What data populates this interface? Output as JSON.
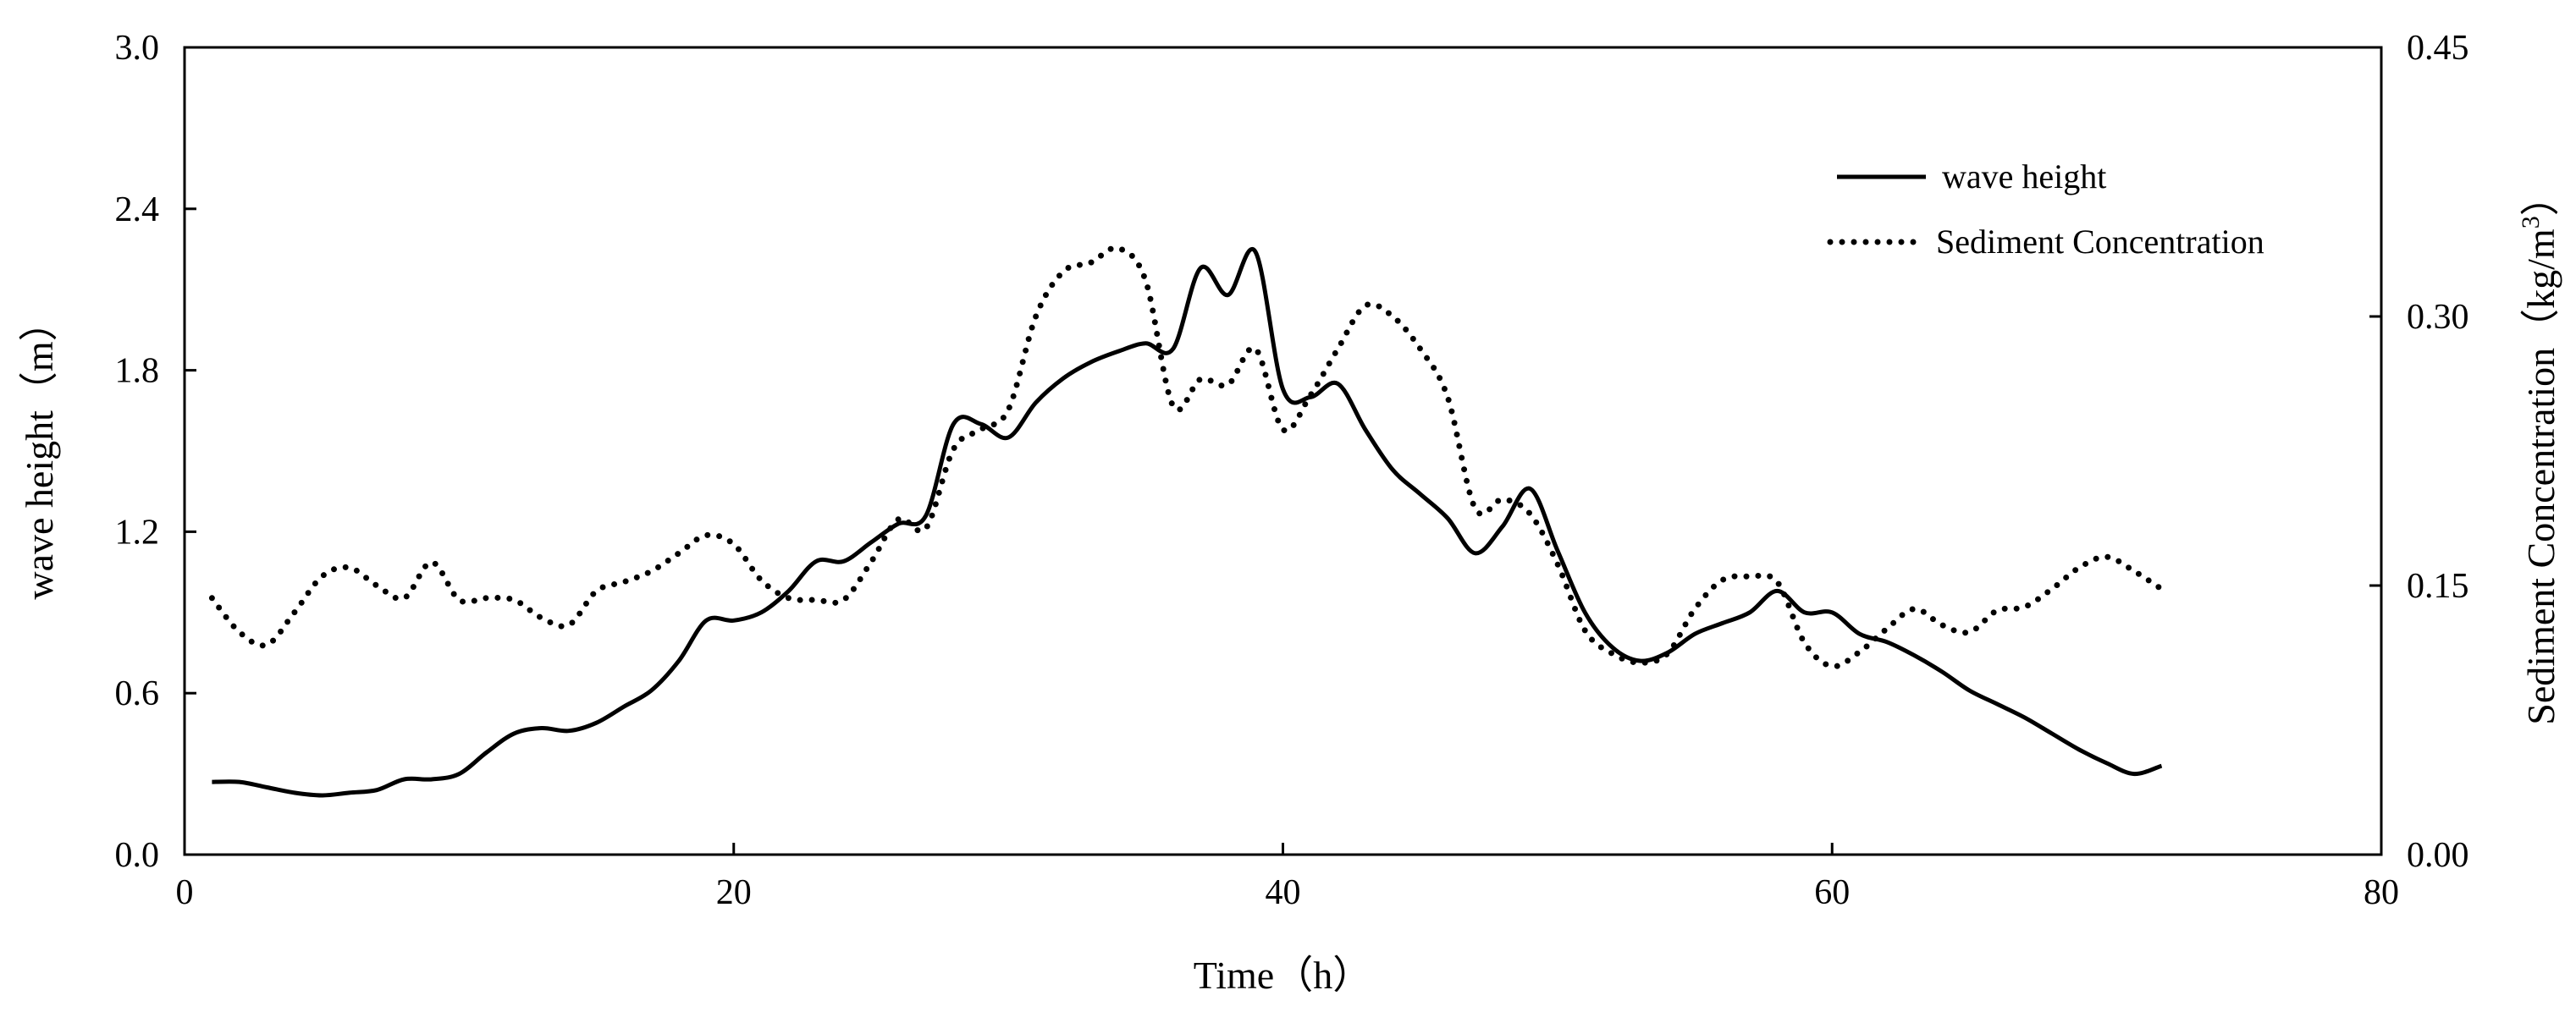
{
  "chart_data": {
    "type": "line",
    "xlabel": "Time（h）",
    "ylabel_left": "wave height（m）",
    "ylabel_right_main": "Sediment Concentration（kg/m",
    "ylabel_right_sup": "3",
    "ylabel_right_end": "）",
    "xlim": [
      0,
      80
    ],
    "ylim_left": [
      0,
      3.0
    ],
    "ylim_right": [
      0,
      0.45
    ],
    "x_ticks": [
      0,
      20,
      40,
      60,
      80
    ],
    "x_tick_labels": [
      "0",
      "20",
      "40",
      "60",
      "80"
    ],
    "y_left_ticks": [
      0,
      0.6,
      1.2,
      1.8,
      2.4,
      3.0
    ],
    "y_left_tick_labels": [
      "0.0",
      "0.6",
      "1.2",
      "1.8",
      "2.4",
      "3.0"
    ],
    "y_right_ticks": [
      0,
      0.15,
      0.3,
      0.45
    ],
    "y_right_tick_labels": [
      "0.00",
      "0.15",
      "0.30",
      "0.45"
    ],
    "grid": false,
    "legend_position": "top-right",
    "series": [
      {
        "name": "wave height",
        "axis": "left",
        "style": "solid",
        "color": "#000000",
        "x": [
          1,
          2,
          3,
          4,
          5,
          6,
          7,
          8,
          9,
          10,
          11,
          12,
          13,
          14,
          15,
          16,
          17,
          18,
          19,
          20,
          21,
          22,
          23,
          24,
          25,
          26,
          27,
          28,
          29,
          30,
          31,
          32,
          33,
          34,
          35,
          36,
          37,
          38,
          39,
          40,
          41,
          42,
          43,
          44,
          45,
          46,
          47,
          48,
          49,
          50,
          51,
          52,
          53,
          54,
          55,
          56,
          57,
          58,
          59,
          60,
          61,
          62,
          63,
          64,
          65,
          66,
          67,
          68,
          69,
          70,
          71,
          72
        ],
        "y": [
          0.27,
          0.27,
          0.25,
          0.23,
          0.22,
          0.23,
          0.24,
          0.28,
          0.28,
          0.3,
          0.38,
          0.45,
          0.47,
          0.46,
          0.49,
          0.55,
          0.61,
          0.72,
          0.87,
          0.87,
          0.9,
          0.98,
          1.09,
          1.09,
          1.16,
          1.23,
          1.26,
          1.6,
          1.6,
          1.55,
          1.68,
          1.77,
          1.83,
          1.87,
          1.9,
          1.88,
          2.18,
          2.08,
          2.24,
          1.73,
          1.7,
          1.75,
          1.58,
          1.43,
          1.34,
          1.25,
          1.12,
          1.22,
          1.36,
          1.13,
          0.9,
          0.77,
          0.72,
          0.75,
          0.82,
          0.86,
          0.9,
          0.98,
          0.9,
          0.9,
          0.82,
          0.79,
          0.74,
          0.68,
          0.61,
          0.56,
          0.51,
          0.45,
          0.39,
          0.34,
          0.3,
          0.33
        ]
      },
      {
        "name": "Sediment Concentration",
        "axis": "right",
        "style": "dotted",
        "color": "#000000",
        "x": [
          1,
          2,
          3,
          4,
          5,
          6,
          7,
          8,
          9,
          10,
          11,
          12,
          13,
          14,
          15,
          16,
          17,
          18,
          19,
          20,
          21,
          22,
          23,
          24,
          25,
          26,
          27,
          28,
          29,
          30,
          31,
          32,
          33,
          34,
          35,
          36,
          37,
          38,
          39,
          40,
          41,
          42,
          43,
          44,
          45,
          46,
          47,
          48,
          49,
          50,
          51,
          52,
          53,
          54,
          55,
          56,
          57,
          58,
          59,
          60,
          61,
          62,
          63,
          64,
          65,
          66,
          67,
          68,
          69,
          70,
          71,
          72
        ],
        "y": [
          0.143,
          0.124,
          0.117,
          0.135,
          0.155,
          0.16,
          0.15,
          0.143,
          0.163,
          0.142,
          0.143,
          0.142,
          0.132,
          0.128,
          0.147,
          0.152,
          0.158,
          0.168,
          0.178,
          0.173,
          0.153,
          0.143,
          0.142,
          0.142,
          0.163,
          0.187,
          0.182,
          0.226,
          0.237,
          0.248,
          0.3,
          0.325,
          0.33,
          0.338,
          0.32,
          0.25,
          0.265,
          0.262,
          0.282,
          0.237,
          0.256,
          0.282,
          0.306,
          0.3,
          0.282,
          0.255,
          0.193,
          0.198,
          0.19,
          0.162,
          0.125,
          0.112,
          0.107,
          0.112,
          0.137,
          0.153,
          0.155,
          0.152,
          0.118,
          0.105,
          0.113,
          0.126,
          0.137,
          0.128,
          0.124,
          0.136,
          0.138,
          0.148,
          0.16,
          0.166,
          0.158,
          0.148
        ]
      }
    ]
  }
}
